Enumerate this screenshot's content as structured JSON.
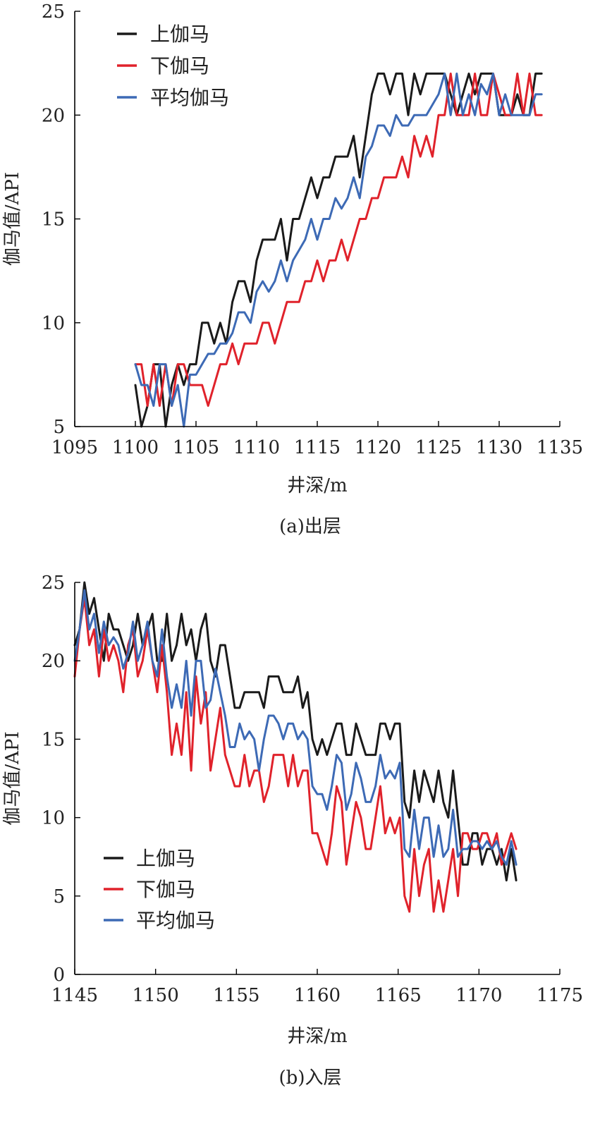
{
  "charts": [
    {
      "caption": "(a)出层",
      "xlabel": "井深/m",
      "ylabel": "伽马值/API"
    },
    {
      "caption": "(b)入层",
      "xlabel": "井深/m",
      "ylabel": "伽马值/API"
    }
  ],
  "chart_data": [
    {
      "type": "line",
      "title": "",
      "caption": "(a)出层",
      "xlabel": "井深/m",
      "ylabel": "伽马值/API",
      "xlim": [
        1095,
        1135
      ],
      "ylim": [
        5,
        25
      ],
      "xticks": [
        1095,
        1100,
        1105,
        1110,
        1115,
        1120,
        1125,
        1130,
        1135
      ],
      "yticks": [
        5,
        10,
        15,
        20,
        25
      ],
      "grid": false,
      "legend": "top-left",
      "series": [
        {
          "name": "上伽马",
          "color": "#1a1a1a",
          "x": [
            1100.0,
            1100.5,
            1101.0,
            1101.5,
            1102.0,
            1102.5,
            1103.0,
            1103.5,
            1104.0,
            1104.5,
            1105.0,
            1105.5,
            1106.0,
            1106.5,
            1107.0,
            1107.5,
            1108.0,
            1108.5,
            1109.0,
            1109.5,
            1110.0,
            1110.5,
            1111.0,
            1111.5,
            1112.0,
            1112.5,
            1113.0,
            1113.5,
            1114.0,
            1114.5,
            1115.0,
            1115.5,
            1116.0,
            1116.5,
            1117.0,
            1117.5,
            1118.0,
            1118.5,
            1119.0,
            1119.5,
            1120.0,
            1120.5,
            1121.0,
            1121.5,
            1122.0,
            1122.5,
            1123.0,
            1123.5,
            1124.0,
            1124.5,
            1125.0,
            1125.5,
            1126.0,
            1126.5,
            1127.0,
            1127.5,
            1128.0,
            1128.5,
            1129.0,
            1129.5,
            1130.0,
            1130.5,
            1131.0,
            1131.5,
            1132.0,
            1132.5,
            1133.0,
            1133.5
          ],
          "y": [
            7,
            5,
            6,
            8,
            8,
            5,
            7,
            8,
            7,
            8,
            8,
            10,
            10,
            9,
            10,
            9,
            11,
            12,
            12,
            11,
            13,
            14,
            14,
            14,
            15,
            13,
            15,
            15,
            16,
            17,
            16,
            17,
            17,
            18,
            18,
            18,
            19,
            17,
            19,
            21,
            22,
            22,
            21,
            22,
            22,
            20,
            22,
            21,
            22,
            22,
            22,
            22,
            21,
            20,
            21,
            22,
            21,
            22,
            22,
            22,
            20,
            20,
            20,
            21,
            20,
            20,
            22,
            22
          ]
        },
        {
          "name": "下伽马",
          "color": "#e0222b",
          "x": [
            1100.0,
            1100.5,
            1101.0,
            1101.5,
            1102.0,
            1102.5,
            1103.0,
            1103.5,
            1104.0,
            1104.5,
            1105.0,
            1105.5,
            1106.0,
            1106.5,
            1107.0,
            1107.5,
            1108.0,
            1108.5,
            1109.0,
            1109.5,
            1110.0,
            1110.5,
            1111.0,
            1111.5,
            1112.0,
            1112.5,
            1113.0,
            1113.5,
            1114.0,
            1114.5,
            1115.0,
            1115.5,
            1116.0,
            1116.5,
            1117.0,
            1117.5,
            1118.0,
            1118.5,
            1119.0,
            1119.5,
            1120.0,
            1120.5,
            1121.0,
            1121.5,
            1122.0,
            1122.5,
            1123.0,
            1123.5,
            1124.0,
            1124.5,
            1125.0,
            1125.5,
            1126.0,
            1126.5,
            1127.0,
            1127.5,
            1128.0,
            1128.5,
            1129.0,
            1129.5,
            1130.0,
            1130.5,
            1131.0,
            1131.5,
            1132.0,
            1132.5,
            1133.0,
            1133.5
          ],
          "y": [
            8,
            8,
            6,
            8,
            6,
            8,
            6,
            8,
            8,
            7,
            7,
            7,
            6,
            7,
            8,
            8,
            9,
            8,
            9,
            9,
            9,
            10,
            10,
            9,
            10,
            11,
            11,
            11,
            12,
            12,
            13,
            12,
            13,
            13,
            14,
            13,
            14,
            15,
            15,
            16,
            16,
            17,
            17,
            17,
            18,
            17,
            19,
            18,
            19,
            18,
            20,
            20,
            22,
            20,
            20,
            20,
            22,
            20,
            20,
            22,
            21,
            20,
            20,
            22,
            20,
            22,
            20,
            20
          ]
        },
        {
          "name": "平均伽马",
          "color": "#3d6ab5",
          "x": [
            1100.0,
            1100.5,
            1101.0,
            1101.5,
            1102.0,
            1102.5,
            1103.0,
            1103.5,
            1104.0,
            1104.5,
            1105.0,
            1105.5,
            1106.0,
            1106.5,
            1107.0,
            1107.5,
            1108.0,
            1108.5,
            1109.0,
            1109.5,
            1110.0,
            1110.5,
            1111.0,
            1111.5,
            1112.0,
            1112.5,
            1113.0,
            1113.5,
            1114.0,
            1114.5,
            1115.0,
            1115.5,
            1116.0,
            1116.5,
            1117.0,
            1117.5,
            1118.0,
            1118.5,
            1119.0,
            1119.5,
            1120.0,
            1120.5,
            1121.0,
            1121.5,
            1122.0,
            1122.5,
            1123.0,
            1123.5,
            1124.0,
            1124.5,
            1125.0,
            1125.5,
            1126.0,
            1126.5,
            1127.0,
            1127.5,
            1128.0,
            1128.5,
            1129.0,
            1129.5,
            1130.0,
            1130.5,
            1131.0,
            1131.5,
            1132.0,
            1132.5,
            1133.0,
            1133.5
          ],
          "y": [
            8,
            7,
            7,
            6,
            8,
            8,
            6,
            7,
            5,
            7.5,
            7.5,
            8,
            8.5,
            8.5,
            9,
            9,
            9.5,
            10.5,
            10.5,
            10,
            11.5,
            12,
            11.5,
            12,
            13,
            12,
            13,
            13.5,
            14,
            15,
            14,
            15,
            15,
            16,
            15.5,
            16,
            17,
            16,
            18,
            18.5,
            19.5,
            19.5,
            19,
            20,
            19.5,
            19.5,
            20,
            20,
            20,
            20.5,
            21,
            22,
            20,
            22,
            20,
            21,
            20,
            21.5,
            21,
            22,
            20,
            21,
            20,
            20,
            20,
            20,
            21,
            21
          ]
        }
      ]
    },
    {
      "type": "line",
      "title": "",
      "caption": "(b)入层",
      "xlabel": "井深/m",
      "ylabel": "伽马值/API",
      "xlim": [
        1145,
        1175
      ],
      "ylim": [
        0,
        25
      ],
      "xticks": [
        1145,
        1150,
        1155,
        1160,
        1165,
        1170,
        1175
      ],
      "yticks": [
        0,
        5,
        10,
        15,
        20,
        25
      ],
      "grid": false,
      "legend": "bottom-left",
      "series": [
        {
          "name": "上伽马",
          "color": "#1a1a1a",
          "x": [
            1145.0,
            1145.3,
            1145.6,
            1145.9,
            1146.2,
            1146.5,
            1146.8,
            1147.1,
            1147.4,
            1147.7,
            1148.0,
            1148.3,
            1148.6,
            1148.9,
            1149.2,
            1149.5,
            1149.8,
            1150.1,
            1150.4,
            1150.7,
            1151.0,
            1151.3,
            1151.6,
            1151.9,
            1152.2,
            1152.5,
            1152.8,
            1153.1,
            1153.4,
            1153.7,
            1154.0,
            1154.3,
            1154.6,
            1154.9,
            1155.2,
            1155.5,
            1155.8,
            1156.1,
            1156.4,
            1156.7,
            1157.0,
            1157.3,
            1157.6,
            1157.9,
            1158.2,
            1158.5,
            1158.8,
            1159.1,
            1159.4,
            1159.7,
            1160.0,
            1160.3,
            1160.6,
            1160.9,
            1161.2,
            1161.5,
            1161.8,
            1162.1,
            1162.4,
            1162.7,
            1163.0,
            1163.3,
            1163.6,
            1163.9,
            1164.2,
            1164.5,
            1164.8,
            1165.1,
            1165.4,
            1165.7,
            1166.0,
            1166.3,
            1166.6,
            1166.9,
            1167.2,
            1167.5,
            1167.8,
            1168.1,
            1168.4,
            1168.7,
            1169.0,
            1169.3,
            1169.6,
            1169.9,
            1170.2,
            1170.5,
            1170.8,
            1171.1,
            1171.4,
            1171.7,
            1172.0,
            1172.3
          ],
          "y": [
            21,
            22,
            25,
            23,
            24,
            22,
            20,
            23,
            22,
            22,
            21,
            20,
            21,
            23,
            21,
            22,
            23,
            20,
            20,
            23,
            20,
            21,
            23,
            21,
            22,
            20,
            22,
            23,
            20,
            19,
            21,
            21,
            19,
            17,
            17,
            18,
            18,
            18,
            18,
            17,
            19,
            19,
            19,
            18,
            18,
            18,
            19,
            17,
            18,
            15,
            14,
            15,
            14,
            15,
            16,
            16,
            14,
            14,
            16,
            15,
            14,
            14,
            14,
            16,
            16,
            15,
            16,
            16,
            11,
            10,
            13,
            11,
            13,
            12,
            11,
            13,
            11,
            10,
            13,
            10,
            7,
            7,
            9,
            9,
            7,
            8,
            8,
            7,
            8,
            6,
            8,
            6
          ]
        },
        {
          "name": "下伽马",
          "color": "#e0222b",
          "x": [
            1145.0,
            1145.3,
            1145.6,
            1145.9,
            1146.2,
            1146.5,
            1146.8,
            1147.1,
            1147.4,
            1147.7,
            1148.0,
            1148.3,
            1148.6,
            1148.9,
            1149.2,
            1149.5,
            1149.8,
            1150.1,
            1150.4,
            1150.7,
            1151.0,
            1151.3,
            1151.6,
            1151.9,
            1152.2,
            1152.5,
            1152.8,
            1153.1,
            1153.4,
            1153.7,
            1154.0,
            1154.3,
            1154.6,
            1154.9,
            1155.2,
            1155.5,
            1155.8,
            1156.1,
            1156.4,
            1156.7,
            1157.0,
            1157.3,
            1157.6,
            1157.9,
            1158.2,
            1158.5,
            1158.8,
            1159.1,
            1159.4,
            1159.7,
            1160.0,
            1160.3,
            1160.6,
            1160.9,
            1161.2,
            1161.5,
            1161.8,
            1162.1,
            1162.4,
            1162.7,
            1163.0,
            1163.3,
            1163.6,
            1163.9,
            1164.2,
            1164.5,
            1164.8,
            1165.1,
            1165.4,
            1165.7,
            1166.0,
            1166.3,
            1166.6,
            1166.9,
            1167.2,
            1167.5,
            1167.8,
            1168.1,
            1168.4,
            1168.7,
            1169.0,
            1169.3,
            1169.6,
            1169.9,
            1170.2,
            1170.5,
            1170.8,
            1171.1,
            1171.4,
            1171.7,
            1172.0,
            1172.3
          ],
          "y": [
            19,
            22,
            24,
            21,
            22,
            19,
            22,
            20,
            21,
            20,
            18,
            21,
            22,
            19,
            20,
            22,
            20,
            18,
            21,
            18,
            14,
            16,
            14,
            18,
            13,
            19,
            16,
            18,
            13,
            15,
            17,
            14,
            13,
            12,
            12,
            14,
            12,
            13,
            13,
            11,
            12,
            14,
            14,
            14,
            12,
            14,
            12,
            13,
            13,
            9,
            9,
            8,
            7,
            9,
            12,
            11,
            7,
            9,
            11,
            10,
            8,
            8,
            10,
            12,
            9,
            10,
            9,
            10,
            5,
            4,
            8,
            5,
            7,
            8,
            4,
            6,
            4,
            6,
            8,
            5,
            9,
            9,
            8,
            8,
            9,
            9,
            8,
            9,
            7,
            8,
            9,
            8
          ]
        },
        {
          "name": "平均伽马",
          "color": "#3d6ab5",
          "x": [
            1145.0,
            1145.3,
            1145.6,
            1145.9,
            1146.2,
            1146.5,
            1146.8,
            1147.1,
            1147.4,
            1147.7,
            1148.0,
            1148.3,
            1148.6,
            1148.9,
            1149.2,
            1149.5,
            1149.8,
            1150.1,
            1150.4,
            1150.7,
            1151.0,
            1151.3,
            1151.6,
            1151.9,
            1152.2,
            1152.5,
            1152.8,
            1153.1,
            1153.4,
            1153.7,
            1154.0,
            1154.3,
            1154.6,
            1154.9,
            1155.2,
            1155.5,
            1155.8,
            1156.1,
            1156.4,
            1156.7,
            1157.0,
            1157.3,
            1157.6,
            1157.9,
            1158.2,
            1158.5,
            1158.8,
            1159.1,
            1159.4,
            1159.7,
            1160.0,
            1160.3,
            1160.6,
            1160.9,
            1161.2,
            1161.5,
            1161.8,
            1162.1,
            1162.4,
            1162.7,
            1163.0,
            1163.3,
            1163.6,
            1163.9,
            1164.2,
            1164.5,
            1164.8,
            1165.1,
            1165.4,
            1165.7,
            1166.0,
            1166.3,
            1166.6,
            1166.9,
            1167.2,
            1167.5,
            1167.8,
            1168.1,
            1168.4,
            1168.7,
            1169.0,
            1169.3,
            1169.6,
            1169.9,
            1170.2,
            1170.5,
            1170.8,
            1171.1,
            1171.4,
            1171.7,
            1172.0,
            1172.3
          ],
          "y": [
            20,
            22,
            24.5,
            22,
            23,
            20.5,
            22.5,
            21,
            21.5,
            21,
            19.5,
            20.5,
            22.5,
            20,
            21,
            22.5,
            20,
            19,
            22,
            19,
            17,
            18.5,
            17,
            20,
            16.5,
            20,
            20,
            17,
            17.5,
            19.5,
            18,
            16.5,
            14.5,
            14.5,
            16,
            15,
            15.5,
            15,
            13,
            15,
            16.5,
            16.5,
            16,
            15,
            16,
            16,
            15,
            15.5,
            15,
            12,
            11.5,
            11.5,
            10.5,
            12,
            14,
            13.5,
            10.5,
            11.5,
            13.5,
            12.5,
            11,
            11,
            12,
            14,
            12.5,
            13,
            12.5,
            13.5,
            8,
            7.5,
            10.5,
            8,
            10,
            10,
            7.5,
            9.5,
            7.5,
            8,
            10.5,
            7.5,
            8,
            8,
            8.5,
            8.5,
            8,
            8.5,
            8,
            8.5,
            7.5,
            7,
            8.5,
            7
          ]
        }
      ]
    }
  ]
}
